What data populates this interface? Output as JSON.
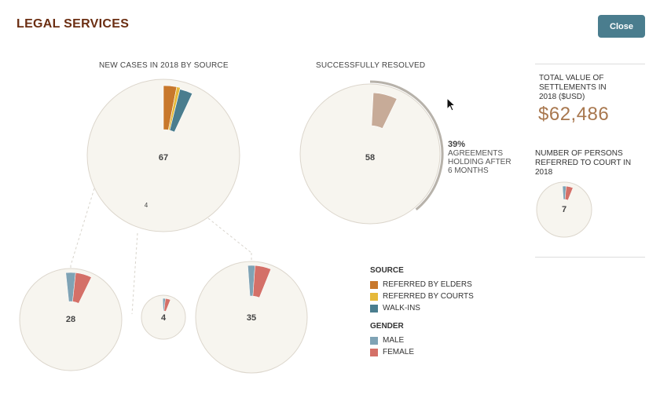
{
  "header": {
    "title": "LEGAL SERVICES",
    "close_label": "Close"
  },
  "sections": {
    "new_cases": "NEW CASES IN 2018 BY SOURCE",
    "resolved": "SUCCESSFULLY RESOLVED"
  },
  "bubbles": {
    "main_total": "67",
    "main_small": "4",
    "elders_total": "28",
    "courts_total": "4",
    "walkins_total": "35",
    "resolved_total": "58",
    "court_referrals_total": "7"
  },
  "resolved_arc": {
    "percent": "39%",
    "label_lines": [
      "AGREEMENTS",
      "HOLDING AFTER",
      "6 MONTHS"
    ],
    "fraction": 0.39
  },
  "settlements": {
    "label_lines": [
      "TOTAL VALUE OF",
      "SETTLEMENTS IN",
      "2018 ($USD)"
    ],
    "value": "$62,486"
  },
  "court_referrals": {
    "label_lines": [
      "NUMBER OF PERSONS",
      "REFERRED TO COURT IN",
      "2018"
    ]
  },
  "legend": {
    "source_title": "SOURCE",
    "source_items": [
      {
        "label": "REFERRED BY ELDERS",
        "color": "#c8782c"
      },
      {
        "label": "REFERRED BY COURTS",
        "color": "#e6b93a"
      },
      {
        "label": "WALK-INS",
        "color": "#4a7d8e"
      }
    ],
    "gender_title": "GENDER",
    "gender_items": [
      {
        "label": "MALE",
        "color": "#7fa3b5"
      },
      {
        "label": "FEMALE",
        "color": "#d47068"
      }
    ]
  },
  "colors": {
    "bubble_fill": "#f7f5ef",
    "bubble_stroke": "#dcd6cc",
    "resolved_wedge": "#c7ab98",
    "arc": "#b7b2aa",
    "title": "#6b2e12",
    "accent_value": "#a8774e"
  }
}
